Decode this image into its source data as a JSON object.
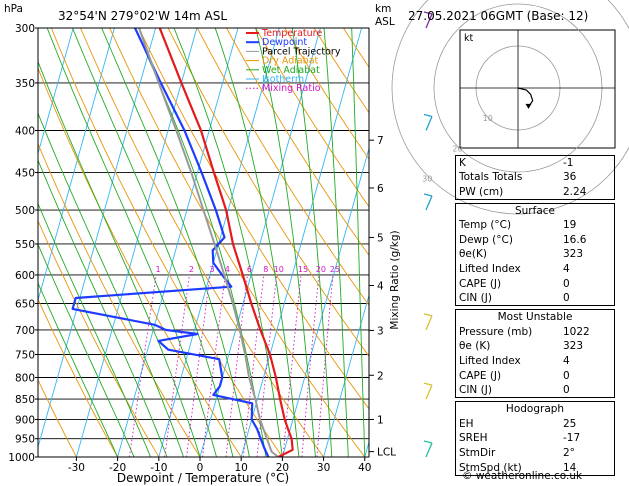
{
  "header": {
    "location": "32°54'N  279°02'W  14m  ASL",
    "datetime": "27.05.2021  06GMT  (Base: 12)",
    "hpa_label": "hPa",
    "km_label": "km",
    "asl_label": "ASL"
  },
  "chart_data": {
    "type": "line",
    "title": "",
    "xlabel": "Dewpoint / Temperature (°C)",
    "ylabel": "hPa",
    "right_ylabel": "Mixing Ratio (g/kg)",
    "x_ticks": [
      -30,
      -20,
      -10,
      0,
      10,
      20,
      30,
      40
    ],
    "y_ticks": [
      300,
      350,
      400,
      450,
      500,
      550,
      600,
      650,
      700,
      750,
      800,
      850,
      900,
      950,
      1000
    ],
    "xlim": [
      -35,
      40
    ],
    "ylim": [
      1000,
      300
    ],
    "km_ticks": [
      {
        "label": "7",
        "p": 411
      },
      {
        "label": "6",
        "p": 470
      },
      {
        "label": "5",
        "p": 540
      },
      {
        "label": "4",
        "p": 618
      },
      {
        "label": "3",
        "p": 701
      },
      {
        "label": "2",
        "p": 795
      },
      {
        "label": "1",
        "p": 900
      },
      {
        "label": "LCL",
        "p": 985
      }
    ],
    "mixing_ratio_labels": [
      "1",
      "2",
      "3",
      "4",
      "6",
      "8",
      "10",
      "15",
      "20",
      "25"
    ],
    "legend": [
      "Temperature",
      "Dewpoint",
      "Parcel Trajectory",
      "Dry Adiabat",
      "Wet Adiabat",
      "Isotherm",
      "Mixing Ratio"
    ],
    "legend_position": "top-left",
    "series": [
      {
        "name": "Temperature",
        "color": "#e41a1c",
        "points": [
          [
            1000,
            19
          ],
          [
            980,
            22
          ],
          [
            950,
            21
          ],
          [
            925,
            19.5
          ],
          [
            900,
            18
          ],
          [
            850,
            15.5
          ],
          [
            800,
            13
          ],
          [
            750,
            10
          ],
          [
            700,
            6
          ],
          [
            650,
            2
          ],
          [
            600,
            -2
          ],
          [
            550,
            -6.5
          ],
          [
            500,
            -10.5
          ],
          [
            450,
            -16
          ],
          [
            400,
            -22
          ],
          [
            350,
            -30
          ],
          [
            300,
            -39
          ]
        ]
      },
      {
        "name": "Dewpoint",
        "color": "#1e3cff",
        "points": [
          [
            1000,
            16.6
          ],
          [
            975,
            15
          ],
          [
            950,
            13.5
          ],
          [
            925,
            12
          ],
          [
            900,
            10
          ],
          [
            860,
            9
          ],
          [
            840,
            -1
          ],
          [
            820,
            0
          ],
          [
            800,
            0
          ],
          [
            760,
            -2
          ],
          [
            740,
            -15
          ],
          [
            722,
            -18
          ],
          [
            708,
            -9
          ],
          [
            700,
            -17
          ],
          [
            690,
            -20
          ],
          [
            660,
            -41
          ],
          [
            640,
            -41
          ],
          [
            620,
            -4
          ],
          [
            600,
            -7
          ],
          [
            580,
            -10
          ],
          [
            560,
            -11
          ],
          [
            540,
            -9
          ],
          [
            500,
            -13
          ],
          [
            450,
            -19
          ],
          [
            400,
            -26
          ],
          [
            350,
            -35
          ],
          [
            300,
            -45
          ]
        ]
      },
      {
        "name": "Parcel Trajectory",
        "color": "#999999",
        "points": [
          [
            1000,
            19
          ],
          [
            985,
            17
          ],
          [
            950,
            15
          ],
          [
            900,
            12
          ],
          [
            850,
            9.5
          ],
          [
            800,
            6.5
          ],
          [
            750,
            4
          ],
          [
            700,
            1
          ],
          [
            650,
            -2.5
          ],
          [
            600,
            -6.5
          ],
          [
            550,
            -11
          ],
          [
            500,
            -16
          ],
          [
            450,
            -21.5
          ],
          [
            400,
            -28
          ],
          [
            350,
            -35.5
          ],
          [
            300,
            -44
          ]
        ]
      }
    ]
  },
  "indices": {
    "rows": [
      {
        "label": "K",
        "value": "-1"
      },
      {
        "label": "Totals Totals",
        "value": "36"
      },
      {
        "label": "PW (cm)",
        "value": "2.24"
      }
    ]
  },
  "surface": {
    "title": "Surface",
    "rows": [
      {
        "label": "Temp (°C)",
        "value": "19"
      },
      {
        "label": "Dewp (°C)",
        "value": "16.6"
      },
      {
        "label": "θe(K)",
        "value": "323"
      },
      {
        "label": "Lifted Index",
        "value": "4"
      },
      {
        "label": "CAPE (J)",
        "value": "0"
      },
      {
        "label": "CIN (J)",
        "value": "0"
      }
    ]
  },
  "most_unstable": {
    "title": "Most Unstable",
    "rows": [
      {
        "label": "Pressure (mb)",
        "value": "1022"
      },
      {
        "label": "θe (K)",
        "value": "323"
      },
      {
        "label": "Lifted Index",
        "value": "4"
      },
      {
        "label": "CAPE (J)",
        "value": "0"
      },
      {
        "label": "CIN (J)",
        "value": "0"
      }
    ]
  },
  "hodograph_table": {
    "title": "Hodograph",
    "rows": [
      {
        "label": "EH",
        "value": "25"
      },
      {
        "label": "SREH",
        "value": "-17"
      },
      {
        "label": "StmDir",
        "value": "2°"
      },
      {
        "label": "StmSpd (kt)",
        "value": "14"
      }
    ]
  },
  "hodograph": {
    "unit_label": "kt",
    "ring_labels": [
      "10",
      "20",
      "30"
    ],
    "trace_kt": [
      [
        0,
        0
      ],
      [
        4,
        -1
      ],
      [
        6,
        -3
      ],
      [
        7,
        -6
      ],
      [
        5,
        -9
      ]
    ]
  },
  "credit": "© weatheronline.co.uk"
}
